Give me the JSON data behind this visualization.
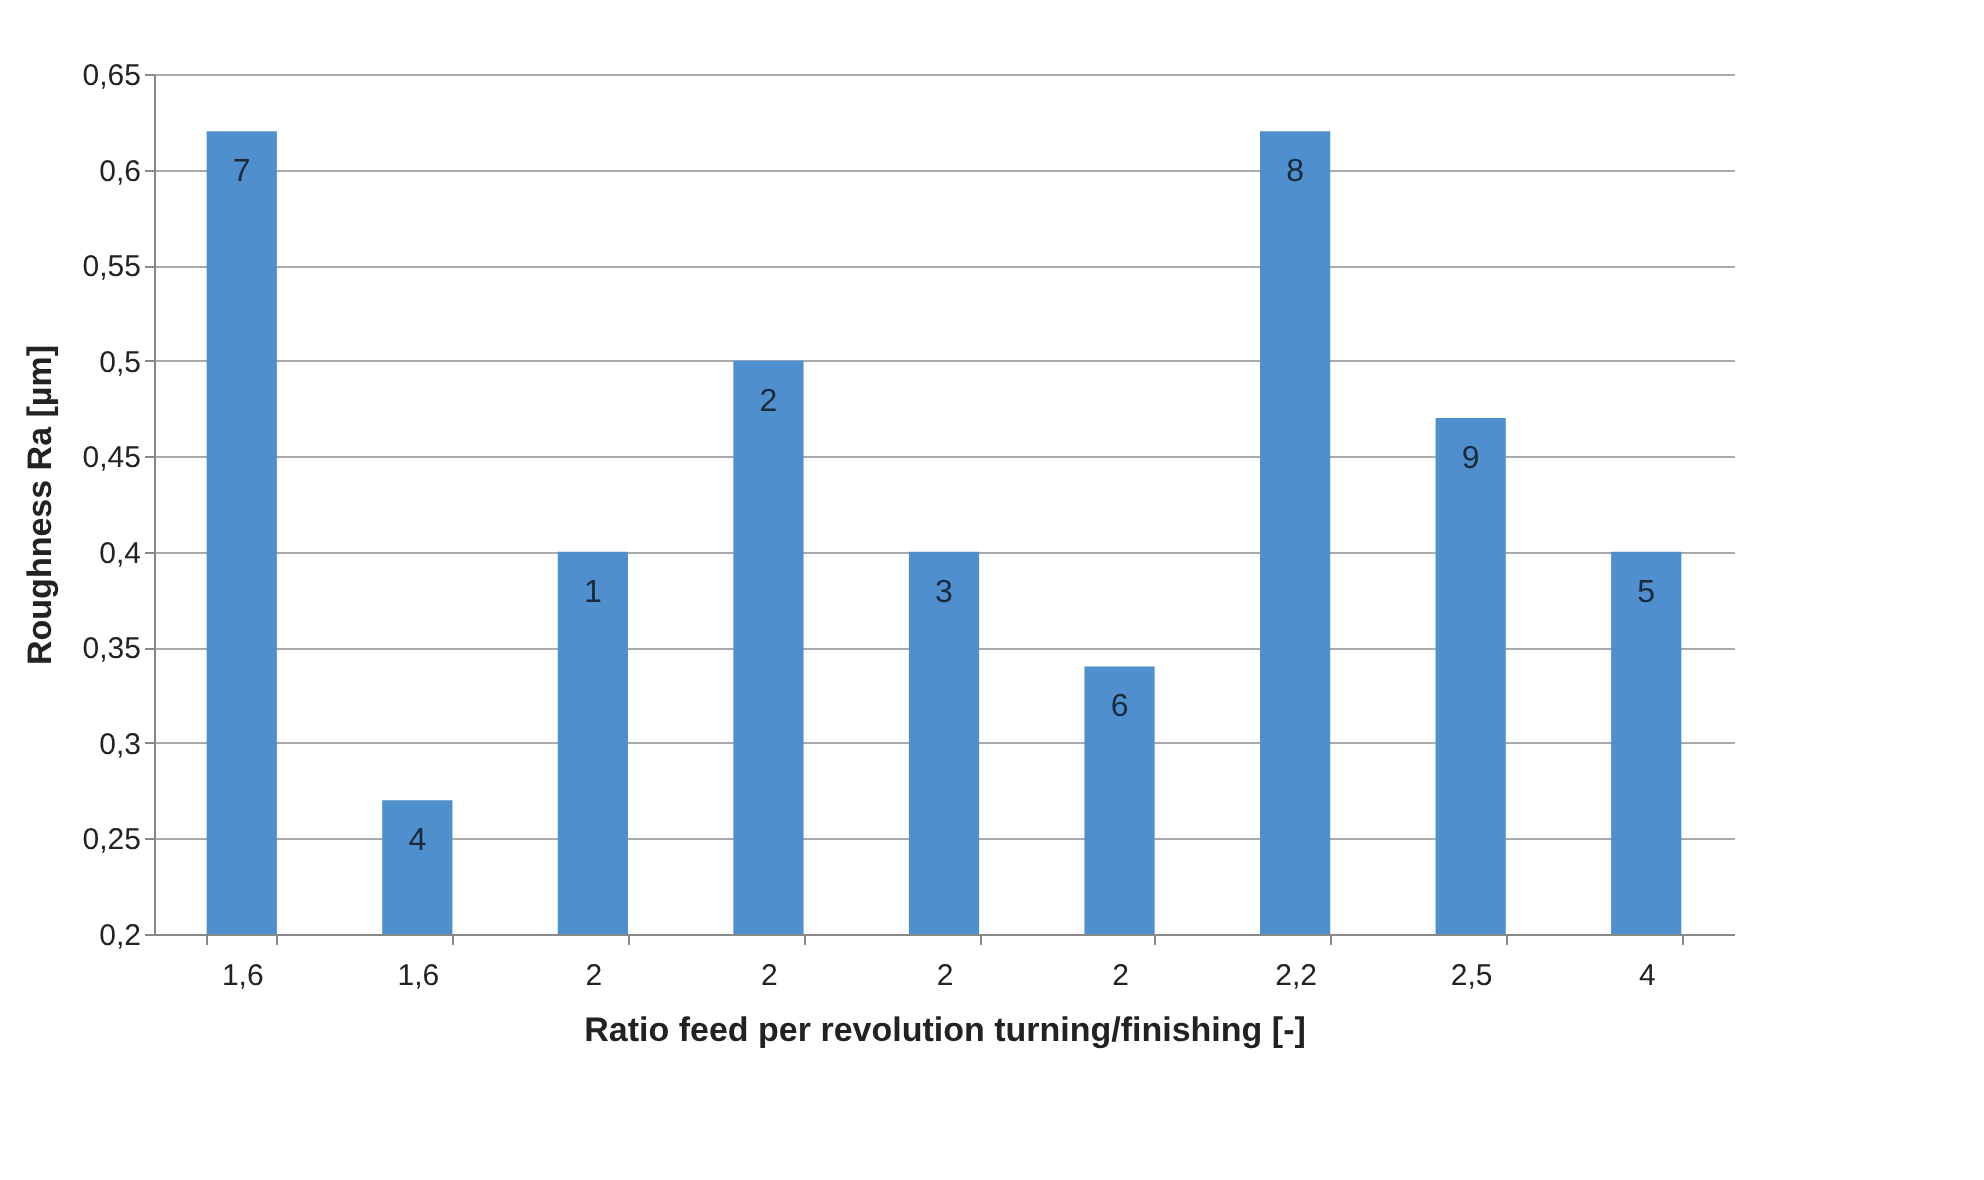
{
  "chart_data": {
    "type": "bar",
    "xlabel": "Ratio feed per revolution turning/finishing [-]",
    "ylabel": "Roughness Ra [µm]",
    "categories": [
      "1,6",
      "1,6",
      "2",
      "2",
      "2",
      "2",
      "2,2",
      "2,5",
      "4"
    ],
    "values": [
      0.62,
      0.27,
      0.4,
      0.5,
      0.4,
      0.34,
      0.62,
      0.47,
      0.4
    ],
    "annotations": [
      "7",
      "4",
      "1",
      "2",
      "3",
      "6",
      "8",
      "9",
      "5"
    ],
    "color": "#4f8fcd",
    "ylim": [
      0.2,
      0.65
    ],
    "yticks": [
      {
        "value": 0.2,
        "label": "0,2"
      },
      {
        "value": 0.25,
        "label": "0,25"
      },
      {
        "value": 0.3,
        "label": "0,3"
      },
      {
        "value": 0.35,
        "label": "0,35"
      },
      {
        "value": 0.4,
        "label": "0,4"
      },
      {
        "value": 0.45,
        "label": "0,45"
      },
      {
        "value": 0.5,
        "label": "0,5"
      },
      {
        "value": 0.55,
        "label": "0,55"
      },
      {
        "value": 0.6,
        "label": "0,6"
      },
      {
        "value": 0.65,
        "label": "0,65"
      }
    ],
    "grid": "y"
  }
}
